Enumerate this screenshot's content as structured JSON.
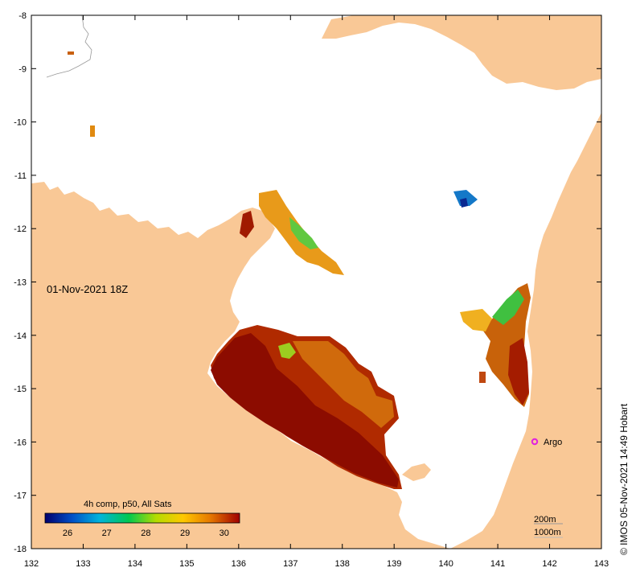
{
  "map": {
    "date_label": "01-Nov-2021 18Z",
    "credit": "© IMOS 05-Nov-2021 14:49 Hobart",
    "x_ticks": [
      "132",
      "133",
      "134",
      "135",
      "136",
      "137",
      "138",
      "139",
      "140",
      "141",
      "142",
      "143"
    ],
    "y_ticks": [
      "-8",
      "-9",
      "-10",
      "-11",
      "-12",
      "-13",
      "-14",
      "-15",
      "-16",
      "-17",
      "-18"
    ],
    "argo_label": "Argo",
    "depth_contours": [
      "200m",
      "1000m"
    ],
    "colors": {
      "land": "#f9c896",
      "sea": "#ffffff",
      "argo": "#e020e0",
      "sst_hot": "#a01000",
      "sst_warm": "#c85a00"
    }
  },
  "legend": {
    "title": "4h comp, p50, All Sats",
    "tick_labels": [
      "26",
      "27",
      "28",
      "29",
      "30"
    ],
    "stops": [
      "#00006e",
      "#0050c8",
      "#00b4dc",
      "#00c850",
      "#b4dc00",
      "#ffc800",
      "#e67800",
      "#a00000"
    ]
  }
}
